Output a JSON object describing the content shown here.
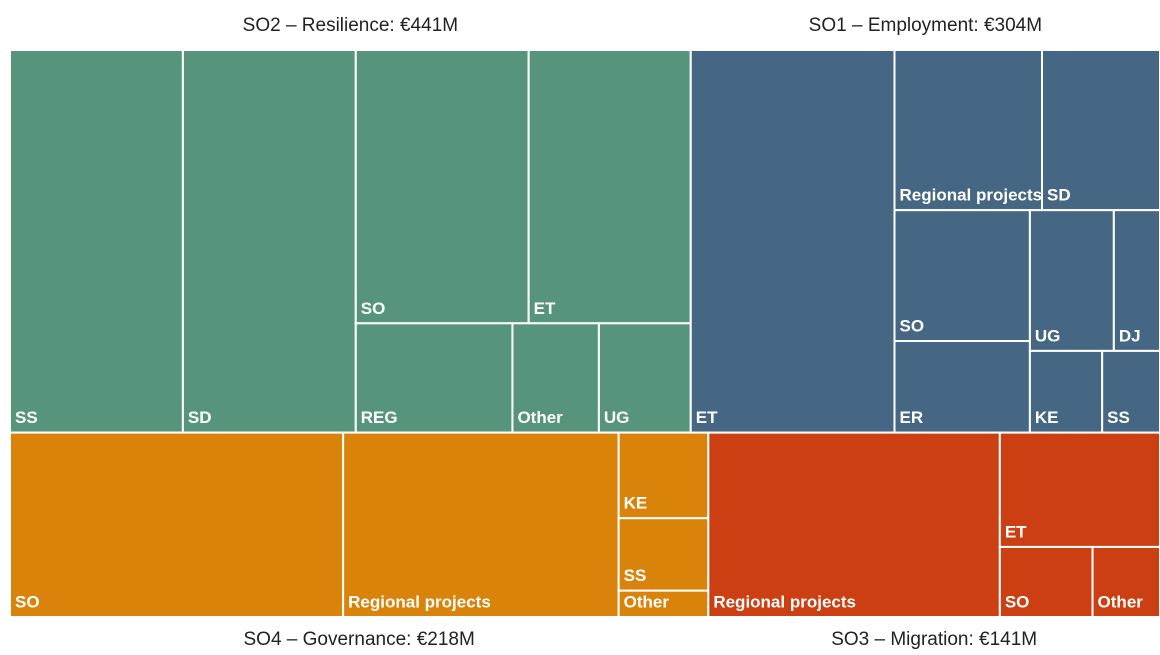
{
  "chart_data": {
    "type": "treemap",
    "groups": [
      {
        "label": "SO2 – Resilience: €441M",
        "value": 441,
        "color": "#56957c",
        "categories": [
          "SS",
          "SD",
          "SO",
          "ET",
          "REG",
          "Other",
          "UG"
        ],
        "values": [
          112,
          112,
          80,
          75,
          29,
          16,
          17
        ]
      },
      {
        "label": "SO1 – Employment: €304M",
        "value": 304,
        "color": "#456783",
        "categories": [
          "ET",
          "Regional projects",
          "SD",
          "SO",
          "ER",
          "UG",
          "DJ",
          "KE",
          "SS"
        ],
        "values": [
          132,
          40,
          32,
          30,
          21,
          20,
          11,
          10,
          8
        ]
      },
      {
        "label": "SO4 – Governance: €218M",
        "value": 218,
        "color": "#d9830b",
        "categories": [
          "SO",
          "Regional projects",
          "KE",
          "SS",
          "Other"
        ],
        "values": [
          104,
          86,
          13,
          11,
          4
        ]
      },
      {
        "label": "SO3 – Migration: €141M",
        "value": 141,
        "color": "#cc3f12",
        "categories": [
          "Regional projects",
          "ET",
          "SO",
          "Other"
        ],
        "values": [
          91,
          31,
          11,
          8
        ]
      }
    ]
  }
}
